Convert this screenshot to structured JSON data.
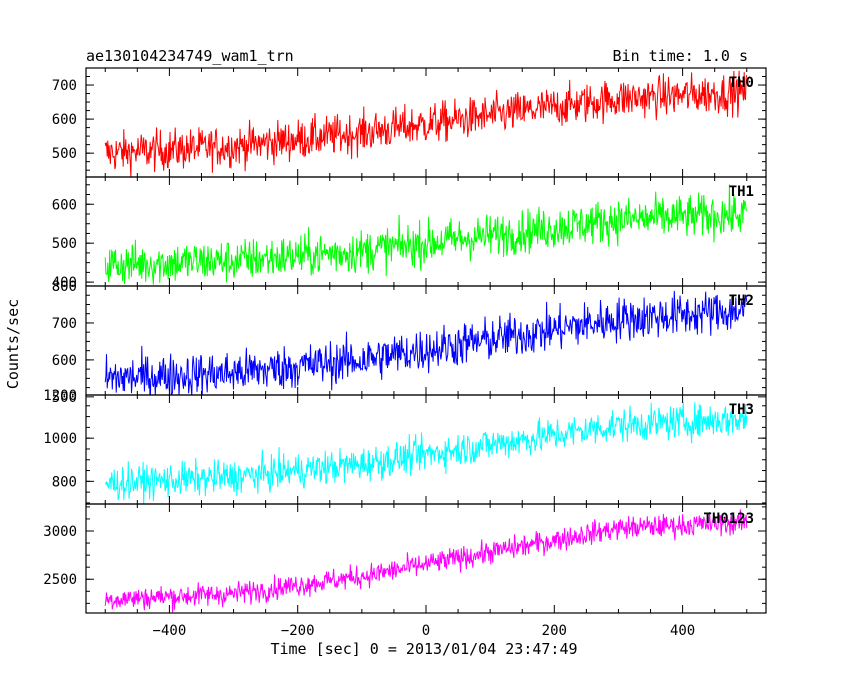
{
  "header": {
    "title": "ae130104234749_wam1_trn",
    "bin_time": "Bin time: 1.0 s"
  },
  "axes": {
    "xlabel": "Time [sec] 0 = 2013/01/04 23:47:49",
    "ylabel": "Counts/sec"
  },
  "chart_data": {
    "type": "line",
    "title": "ae130104234749_wam1_trn",
    "subtitle": "Bin time: 1.0 s",
    "xlabel": "Time [sec] 0 = 2013/01/04 23:47:49",
    "ylabel": "Counts/sec",
    "xlim": [
      -530,
      530
    ],
    "x_ticks": [
      -400,
      -200,
      0,
      200,
      400
    ],
    "x_tick_labels": [
      "−400",
      "−200",
      "0",
      "200",
      "400"
    ],
    "x_range": [
      -500,
      500
    ],
    "grid": false,
    "panels": [
      {
        "name": "TH0",
        "color": "#ff0000",
        "ylim": [
          430,
          750
        ],
        "y_ticks": [
          500,
          600,
          700
        ],
        "y_tick_labels": [
          "500",
          "600",
          "700"
        ],
        "trend_x": [
          -500,
          -300,
          -100,
          100,
          300,
          500
        ],
        "trend_y": [
          500,
          520,
          560,
          610,
          660,
          680
        ],
        "noise": 30
      },
      {
        "name": "TH1",
        "color": "#00ff00",
        "ylim": [
          390,
          670
        ],
        "y_ticks": [
          400,
          500,
          600
        ],
        "y_tick_labels": [
          "400",
          "500",
          "600"
        ],
        "trend_x": [
          -500,
          -300,
          -100,
          100,
          300,
          500
        ],
        "trend_y": [
          445,
          455,
          480,
          520,
          560,
          575
        ],
        "noise": 28
      },
      {
        "name": "TH2",
        "color": "#0000ff",
        "ylim": [
          505,
          800
        ],
        "y_ticks": [
          500,
          600,
          700,
          800
        ],
        "y_tick_labels": [
          "500",
          "600",
          "700",
          "800"
        ],
        "trend_x": [
          -500,
          -300,
          -100,
          100,
          300,
          500
        ],
        "trend_y": [
          550,
          565,
          600,
          655,
          710,
          735
        ],
        "noise": 30
      },
      {
        "name": "TH3",
        "color": "#00ffff",
        "ylim": [
          695,
          1200
        ],
        "y_ticks": [
          800,
          1000,
          1200
        ],
        "y_tick_labels": [
          "800",
          "1000",
          "1200"
        ],
        "trend_x": [
          -500,
          -300,
          -100,
          100,
          300,
          500
        ],
        "trend_y": [
          790,
          820,
          880,
          970,
          1060,
          1090
        ],
        "noise": 40
      },
      {
        "name": "TH0123",
        "color": "#ff00ff",
        "ylim": [
          2150,
          3280
        ],
        "y_ticks": [
          2500,
          3000
        ],
        "y_tick_labels": [
          "2500",
          "3000"
        ],
        "trend_x": [
          -500,
          -300,
          -100,
          100,
          300,
          500
        ],
        "trend_y": [
          2290,
          2350,
          2530,
          2780,
          3030,
          3090
        ],
        "noise": 60
      }
    ]
  }
}
